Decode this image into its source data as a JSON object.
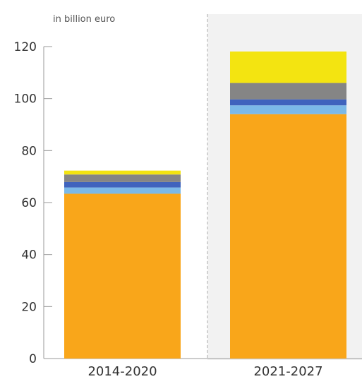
{
  "chart_data": {
    "type": "bar",
    "stacked": true,
    "unit_label": "in billion euro",
    "categories": [
      "2014-2020",
      "2021-2027"
    ],
    "ylim": [
      0,
      120
    ],
    "yticks": [
      "0",
      "20",
      "40",
      "60",
      "80",
      "100",
      "120"
    ],
    "highlighted_category": "2021-2027",
    "legend": "none",
    "grid": false,
    "series": [
      {
        "color": "#f9a61a",
        "values": [
          63.4,
          94.0
        ]
      },
      {
        "color": "#7bb9e8",
        "values": [
          2.4,
          3.4
        ]
      },
      {
        "color": "#3f63bd",
        "values": [
          2.1,
          2.3
        ]
      },
      {
        "color": "#858585",
        "values": [
          2.9,
          6.3
        ]
      },
      {
        "color": "#f3e411",
        "values": [
          1.5,
          12.1
        ]
      }
    ]
  }
}
